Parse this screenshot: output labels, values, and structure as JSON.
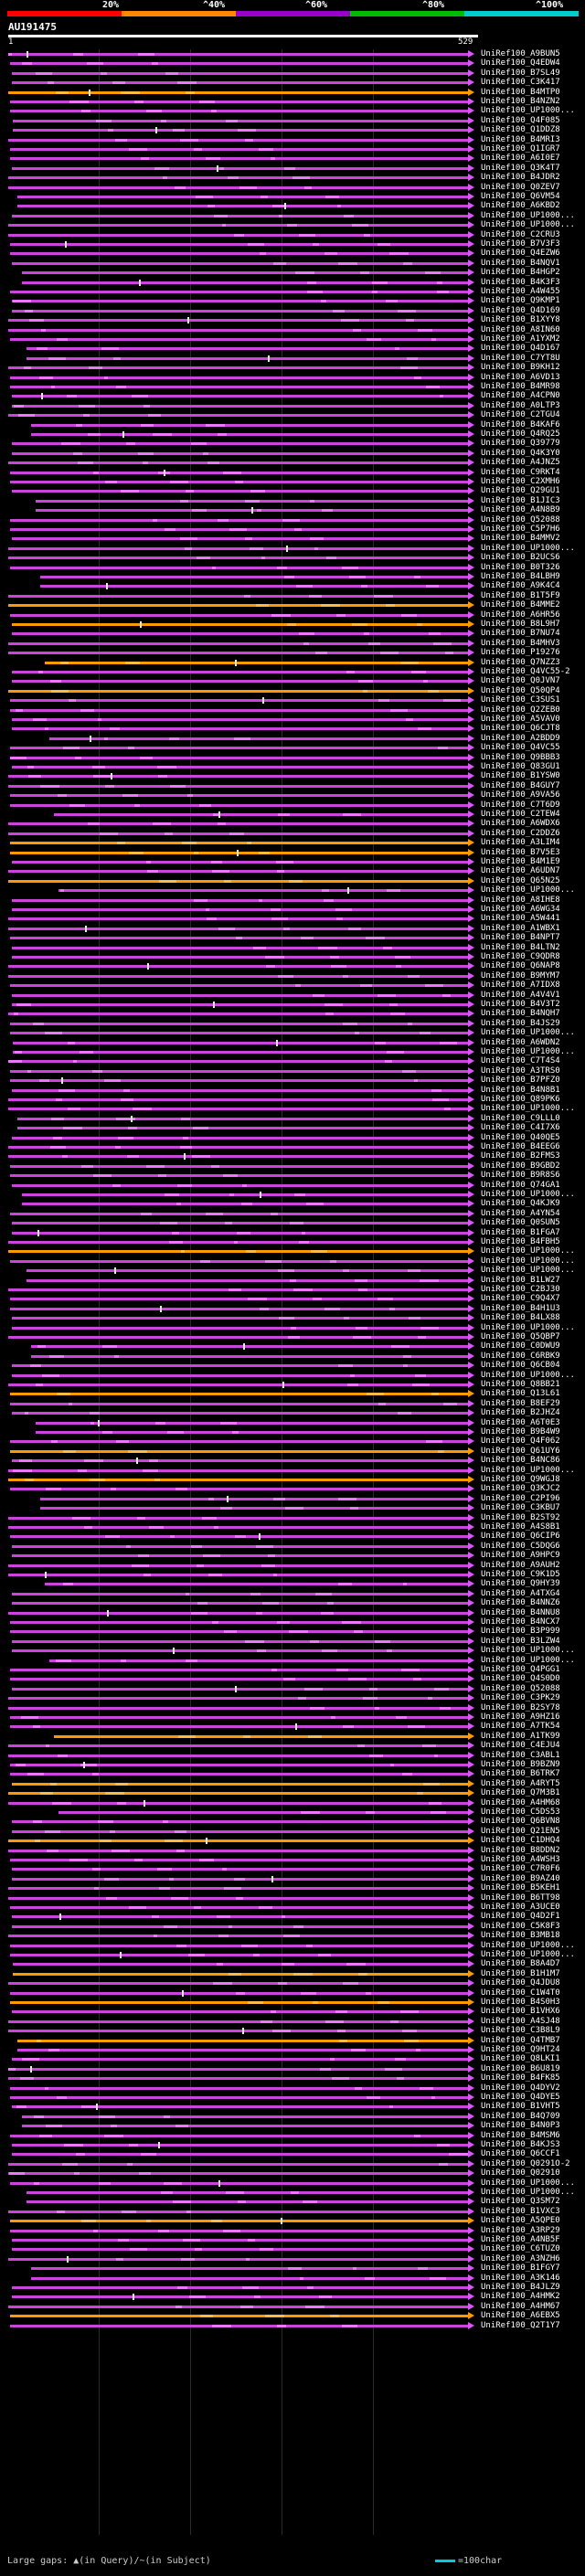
{
  "legend": {
    "labels": [
      "20%",
      "^40%",
      "^60%",
      "^80%",
      "^100%"
    ],
    "colors": [
      "#ff0000",
      "#ff8800",
      "#9900cc",
      "#00bb00",
      "#00cccc"
    ]
  },
  "query": {
    "name": "AU191475",
    "start": "1",
    "end": "529"
  },
  "hits": [
    "UniRef100_A9BUN5",
    "UniRef100_Q4EDW4",
    "UniRef100_B7SL49",
    "UniRef100_C3K417",
    "UniRef100_B4MTP0",
    "UniRef100_B4NZN2",
    "UniRef100_UP1000...",
    "UniRef100_Q4F085",
    "UniRef100_Q1DDZ8",
    "UniRef100_B4MRI3",
    "UniRef100_Q1IGR7",
    "UniRef100_A6I0E7",
    "UniRef100_Q3K4T7",
    "UniRef100_B4JDR2",
    "UniRef100_Q0ZEV7",
    "UniRef100_Q6VM54",
    "UniRef100_A6KBD2",
    "UniRef100_UP1000...",
    "UniRef100_UP1000...",
    "UniRef100_C2CRU3",
    "UniRef100_B7V3F3",
    "UniRef100_Q4EZW6",
    "UniRef100_B4NQV1",
    "UniRef100_B4HGP2",
    "UniRef100_B4K3F3",
    "UniRef100_A4W455",
    "UniRef100_Q9KMP1",
    "UniRef100_Q4D169",
    "UniRef100_B1XYY8",
    "UniRef100_A8IN60",
    "UniRef100_A1YXM2",
    "UniRef100_Q4D167",
    "UniRef100_C7YT8U",
    "UniRef100_B9KH12",
    "UniRef100_A6VD13",
    "UniRef100_B4MR98",
    "UniRef100_A4CPN0",
    "UniRef100_A0LTP3",
    "UniRef100_C2TGU4",
    "UniRef100_B4KAF6",
    "UniRef100_Q4RQ25",
    "UniRef100_Q39779",
    "UniRef100_Q4K3Y0",
    "UniRef100_A4JNZ5",
    "UniRef100_C9RKT4",
    "UniRef100_C2XMH6",
    "UniRef100_Q29GU1",
    "UniRef100_B1JIC3",
    "UniRef100_A4N8B9",
    "UniRef100_Q52088",
    "UniRef100_C5P7H6",
    "UniRef100_B4MMV2",
    "UniRef100_UP1000...",
    "UniRef100_B2UCS6",
    "UniRef100_B0T326",
    "UniRef100_B4LBH9",
    "UniRef100_A9K4C4",
    "UniRef100_B1T5F9",
    "UniRef100_B4MME2",
    "UniRef100_A6HR56",
    "UniRef100_B8L9H7",
    "UniRef100_B7NU74",
    "UniRef100_B4MHV3",
    "UniRef100_P19276",
    "UniRef100_Q7NZZ3",
    "UniRef100_Q4VC55-2",
    "UniRef100_Q0JVN7",
    "UniRef100_Q50QP4",
    "UniRef100_C3SUS1",
    "UniRef100_Q2ZEB0",
    "UniRef100_A5VAV0",
    "UniRef100_Q6CJT8",
    "UniRef100_A2BDD9",
    "UniRef100_Q4VC55",
    "UniRef100_Q9BBB3",
    "UniRef100_Q83GU1",
    "UniRef100_B1YSW0",
    "UniRef100_B4GUY7",
    "UniRef100_A9VA56",
    "UniRef100_C7T6D9",
    "UniRef100_C2TEW4",
    "UniRef100_A6WDX6",
    "UniRef100_C2DDZ6",
    "UniRef100_A3LIM4",
    "UniRef100_B7V5E3",
    "UniRef100_B4M1E9",
    "UniRef100_A6UDN7",
    "UniRef100_Q65N25",
    "UniRef100_UP1000...",
    "UniRef100_A8IHE8",
    "UniRef100_A6WG34",
    "UniRef100_A5W441",
    "UniRef100_A1WBX1",
    "UniRef100_B4NPT7",
    "UniRef100_B4LTN2",
    "UniRef100_C9QDR8",
    "UniRef100_Q6NAP8",
    "UniRef100_B9MYM7",
    "UniRef100_A7IDX8",
    "UniRef100_A4V4V1",
    "UniRef100_B4V3T2",
    "UniRef100_B4NQH7",
    "UniRef100_B4JS29",
    "UniRef100_UP1000...",
    "UniRef100_A6WDN2",
    "UniRef100_UP1000...",
    "UniRef100_C7T4S4",
    "UniRef100_A3TRS0",
    "UniRef100_B7PFZ0",
    "UniRef100_B4N8B1",
    "UniRef100_Q89PK6",
    "UniRef100_UP1000...",
    "UniRef100_C9LLL0",
    "UniRef100_C4I7X6",
    "UniRef100_Q40QE5",
    "UniRef100_B4EEG6",
    "UniRef100_B2FMS3",
    "UniRef100_B9GBD2",
    "UniRef100_B9R8S6",
    "UniRef100_Q74GA1",
    "UniRef100_UP1000...",
    "UniRef100_Q4KJK9",
    "UniRef100_A4YN54",
    "UniRef100_Q0SUN5",
    "UniRef100_B1FGA7",
    "UniRef100_B4FBH5",
    "UniRef100_UP1000...",
    "UniRef100_UP1000...",
    "UniRef100_UP1000...",
    "UniRef100_B1LW27",
    "UniRef100_C2BJ30",
    "UniRef100_C9Q4X7",
    "UniRef100_B4H1U3",
    "UniRef100_B4LX88",
    "UniRef100_UP1000...",
    "UniRef100_Q5QBP7",
    "UniRef100_C0DWU9",
    "UniRef100_C6RBK9",
    "UniRef100_Q6CB04",
    "UniRef100_UP1000...",
    "UniRef100_Q8BB21",
    "UniRef100_Q13L61",
    "UniRef100_B8EF29",
    "UniRef100_B2JHZ4",
    "UniRef100_A6T0E3",
    "UniRef100_B9B4W9",
    "UniRef100_Q4F062",
    "UniRef100_Q61UY6",
    "UniRef100_B4NC86",
    "UniRef100_UP1000...",
    "UniRef100_Q9WGJ8",
    "UniRef100_Q3KJC2",
    "UniRef100_C2PI96",
    "UniRef100_C3KBU7",
    "UniRef100_B2ST92",
    "UniRef100_A4S8B1",
    "UniRef100_Q6CIP6",
    "UniRef100_C5DQG6",
    "UniRef100_A9HPC9",
    "UniRef100_A9AUH2",
    "UniRef100_C9K1D5",
    "UniRef100_Q9HY39",
    "UniRef100_A4TXG4",
    "UniRef100_B4NNZ6",
    "UniRef100_B4NNU8",
    "UniRef100_B4NCX7",
    "UniRef100_B3P999",
    "UniRef100_B3LZW4",
    "UniRef100_UP1000...",
    "UniRef100_UP1000...",
    "UniRef100_Q4PGG1",
    "UniRef100_Q4S0D0",
    "UniRef100_Q52088",
    "UniRef100_C3PK29",
    "UniRef100_B2SY78",
    "UniRef100_A9HZ16",
    "UniRef100_A7TK54",
    "UniRef100_A1TK99",
    "UniRef100_C4EJU4",
    "UniRef100_C3ABL1",
    "UniRef100_B9BZN9",
    "UniRef100_B6TRK7",
    "UniRef100_A4RYT5",
    "UniRef100_Q7M3B1",
    "UniRef100_A4HM68",
    "UniRef100_C5DS53",
    "UniRef100_Q6BVN8",
    "UniRef100_Q21EN5",
    "UniRef100_C1DHQ4",
    "UniRef100_B8DDN2",
    "UniRef100_A4WSH3",
    "UniRef100_C7R0F6",
    "UniRef100_B9AZ40",
    "UniRef100_B5KEH1",
    "UniRef100_B6TT98",
    "UniRef100_A3UCE0",
    "UniRef100_Q4D2F1",
    "UniRef100_C5K8F3",
    "UniRef100_B3MB18",
    "UniRef100_UP1000...",
    "UniRef100_UP1000...",
    "UniRef100_B8A4D7",
    "UniRef100_B1H1M7",
    "UniRef100_Q4JDU8",
    "UniRef100_C1W4T0",
    "UniRef100_B4S0H3",
    "UniRef100_B1VHX6",
    "UniRef100_A4SJ48",
    "UniRef100_C3B8L9",
    "UniRef100_Q4TMB7",
    "UniRef100_Q9HT24",
    "UniRef100_Q8LKI1",
    "UniRef100_B6U819",
    "UniRef100_B4FK85",
    "UniRef100_Q4DYV2",
    "UniRef100_Q4DYE5",
    "UniRef100_B1VHT5",
    "UniRef100_B4Q709",
    "UniRef100_B4N0P3",
    "UniRef100_B4MSM6",
    "UniRef100_B4KJS3",
    "UniRef100_Q6CCF1",
    "UniRef100_Q0291O-2",
    "UniRef100_Q02910",
    "UniRef100_UP1000...",
    "UniRef100_UP1000...",
    "UniRef100_Q3SM72",
    "UniRef100_B1VXC3",
    "UniRef100_A5QPE0",
    "UniRef100_A3RP29",
    "UniRef100_A4NB5F",
    "UniRef100_C6TUZ0",
    "UniRef100_A3NZH6",
    "UniRef100_B1FGY7",
    "UniRef100_A3K146",
    "UniRef100_B4JLZ9",
    "UniRef100_A4HMK2",
    "UniRef100_A4HM67",
    "UniRef100_A6EBX5",
    "UniRef100_Q2T1Y7"
  ],
  "footer": {
    "large_gaps": "Large gaps: ▲(in Query)/~(in Subject)",
    "scale": "=100char"
  }
}
